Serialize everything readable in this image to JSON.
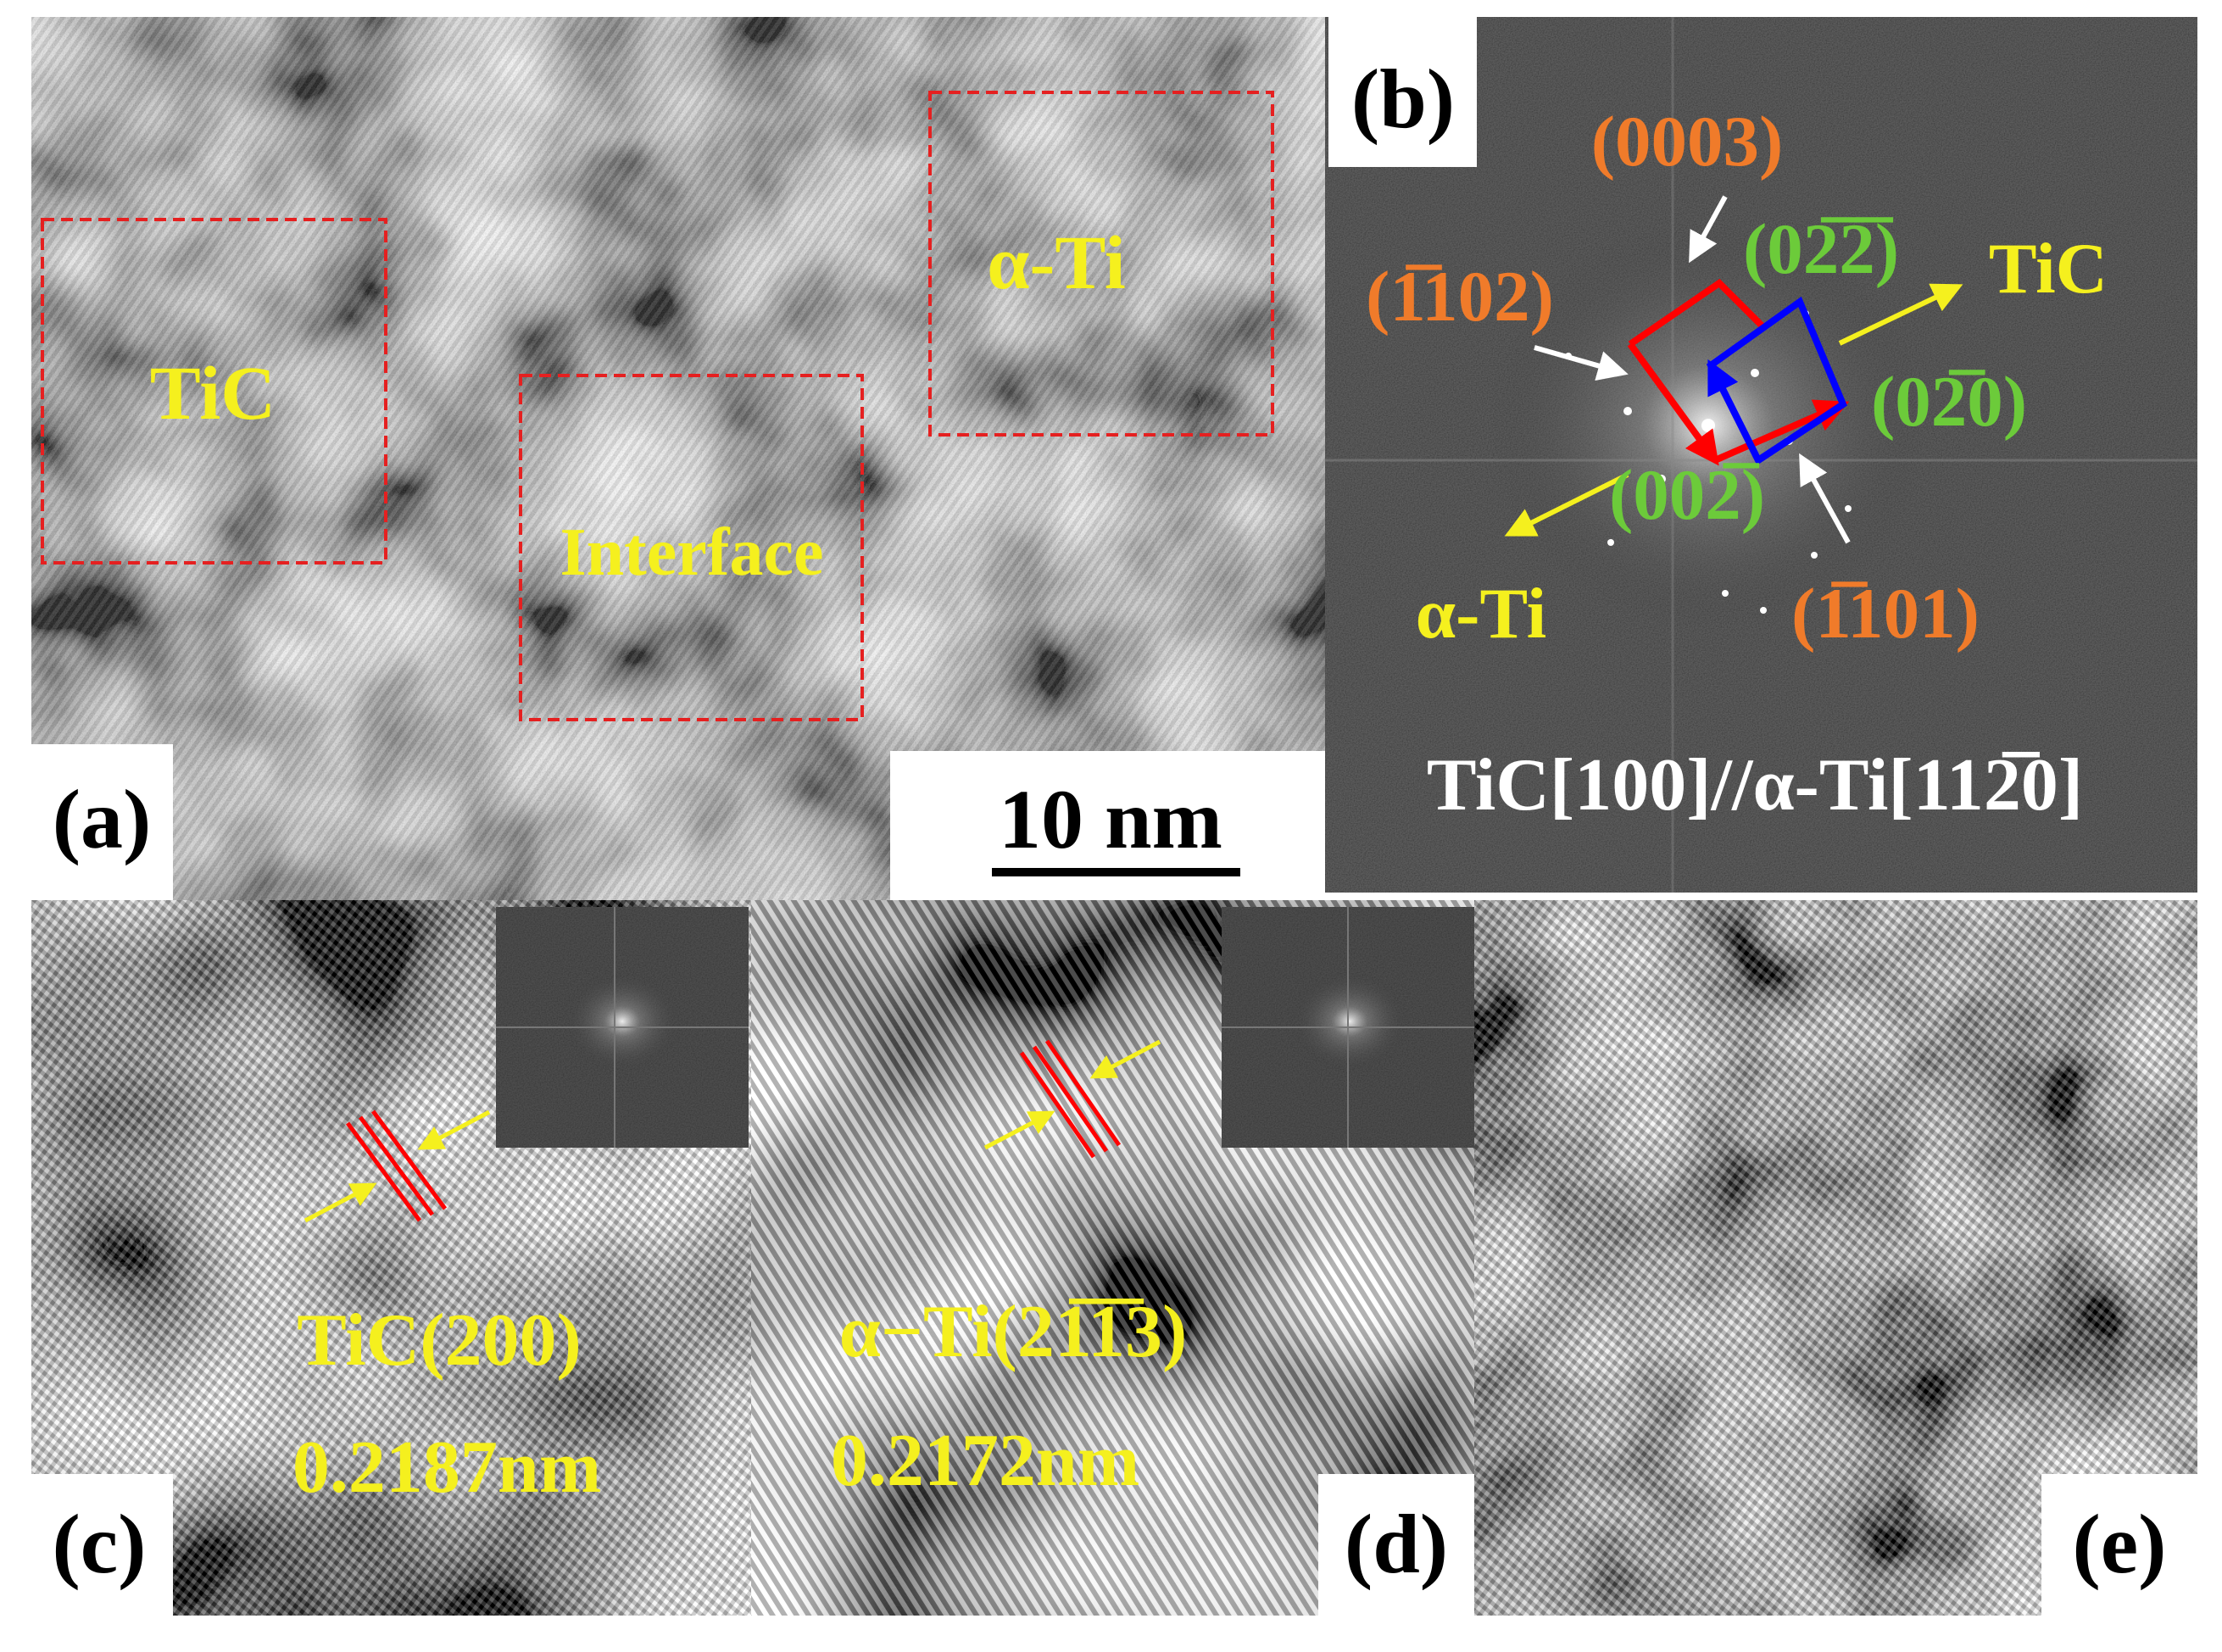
{
  "panel_a": {
    "label": "(a)",
    "regions": [
      "TiC",
      "Interface",
      "α-Ti"
    ],
    "scale_bar": "10 nm"
  },
  "panel_b": {
    "label": "(b)",
    "spots": [
      "(0003)",
      "(02̅2̅)",
      "(1̅102)",
      "(02̅0)",
      "(002̅)",
      "(1̅101)"
    ],
    "directions": [
      "TiC",
      "α-Ti"
    ],
    "zone_axis": "TiC[100]//α-Ti[112̅0]"
  },
  "panel_c": {
    "label": "(c)",
    "plane": "TiC(200)",
    "spacing": "0.2187nm"
  },
  "panel_d": {
    "label": "(d)",
    "plane": "α−Ti(21̅1̅3)",
    "spacing": "0.2172nm"
  },
  "panel_e": {
    "label": "(e)"
  }
}
